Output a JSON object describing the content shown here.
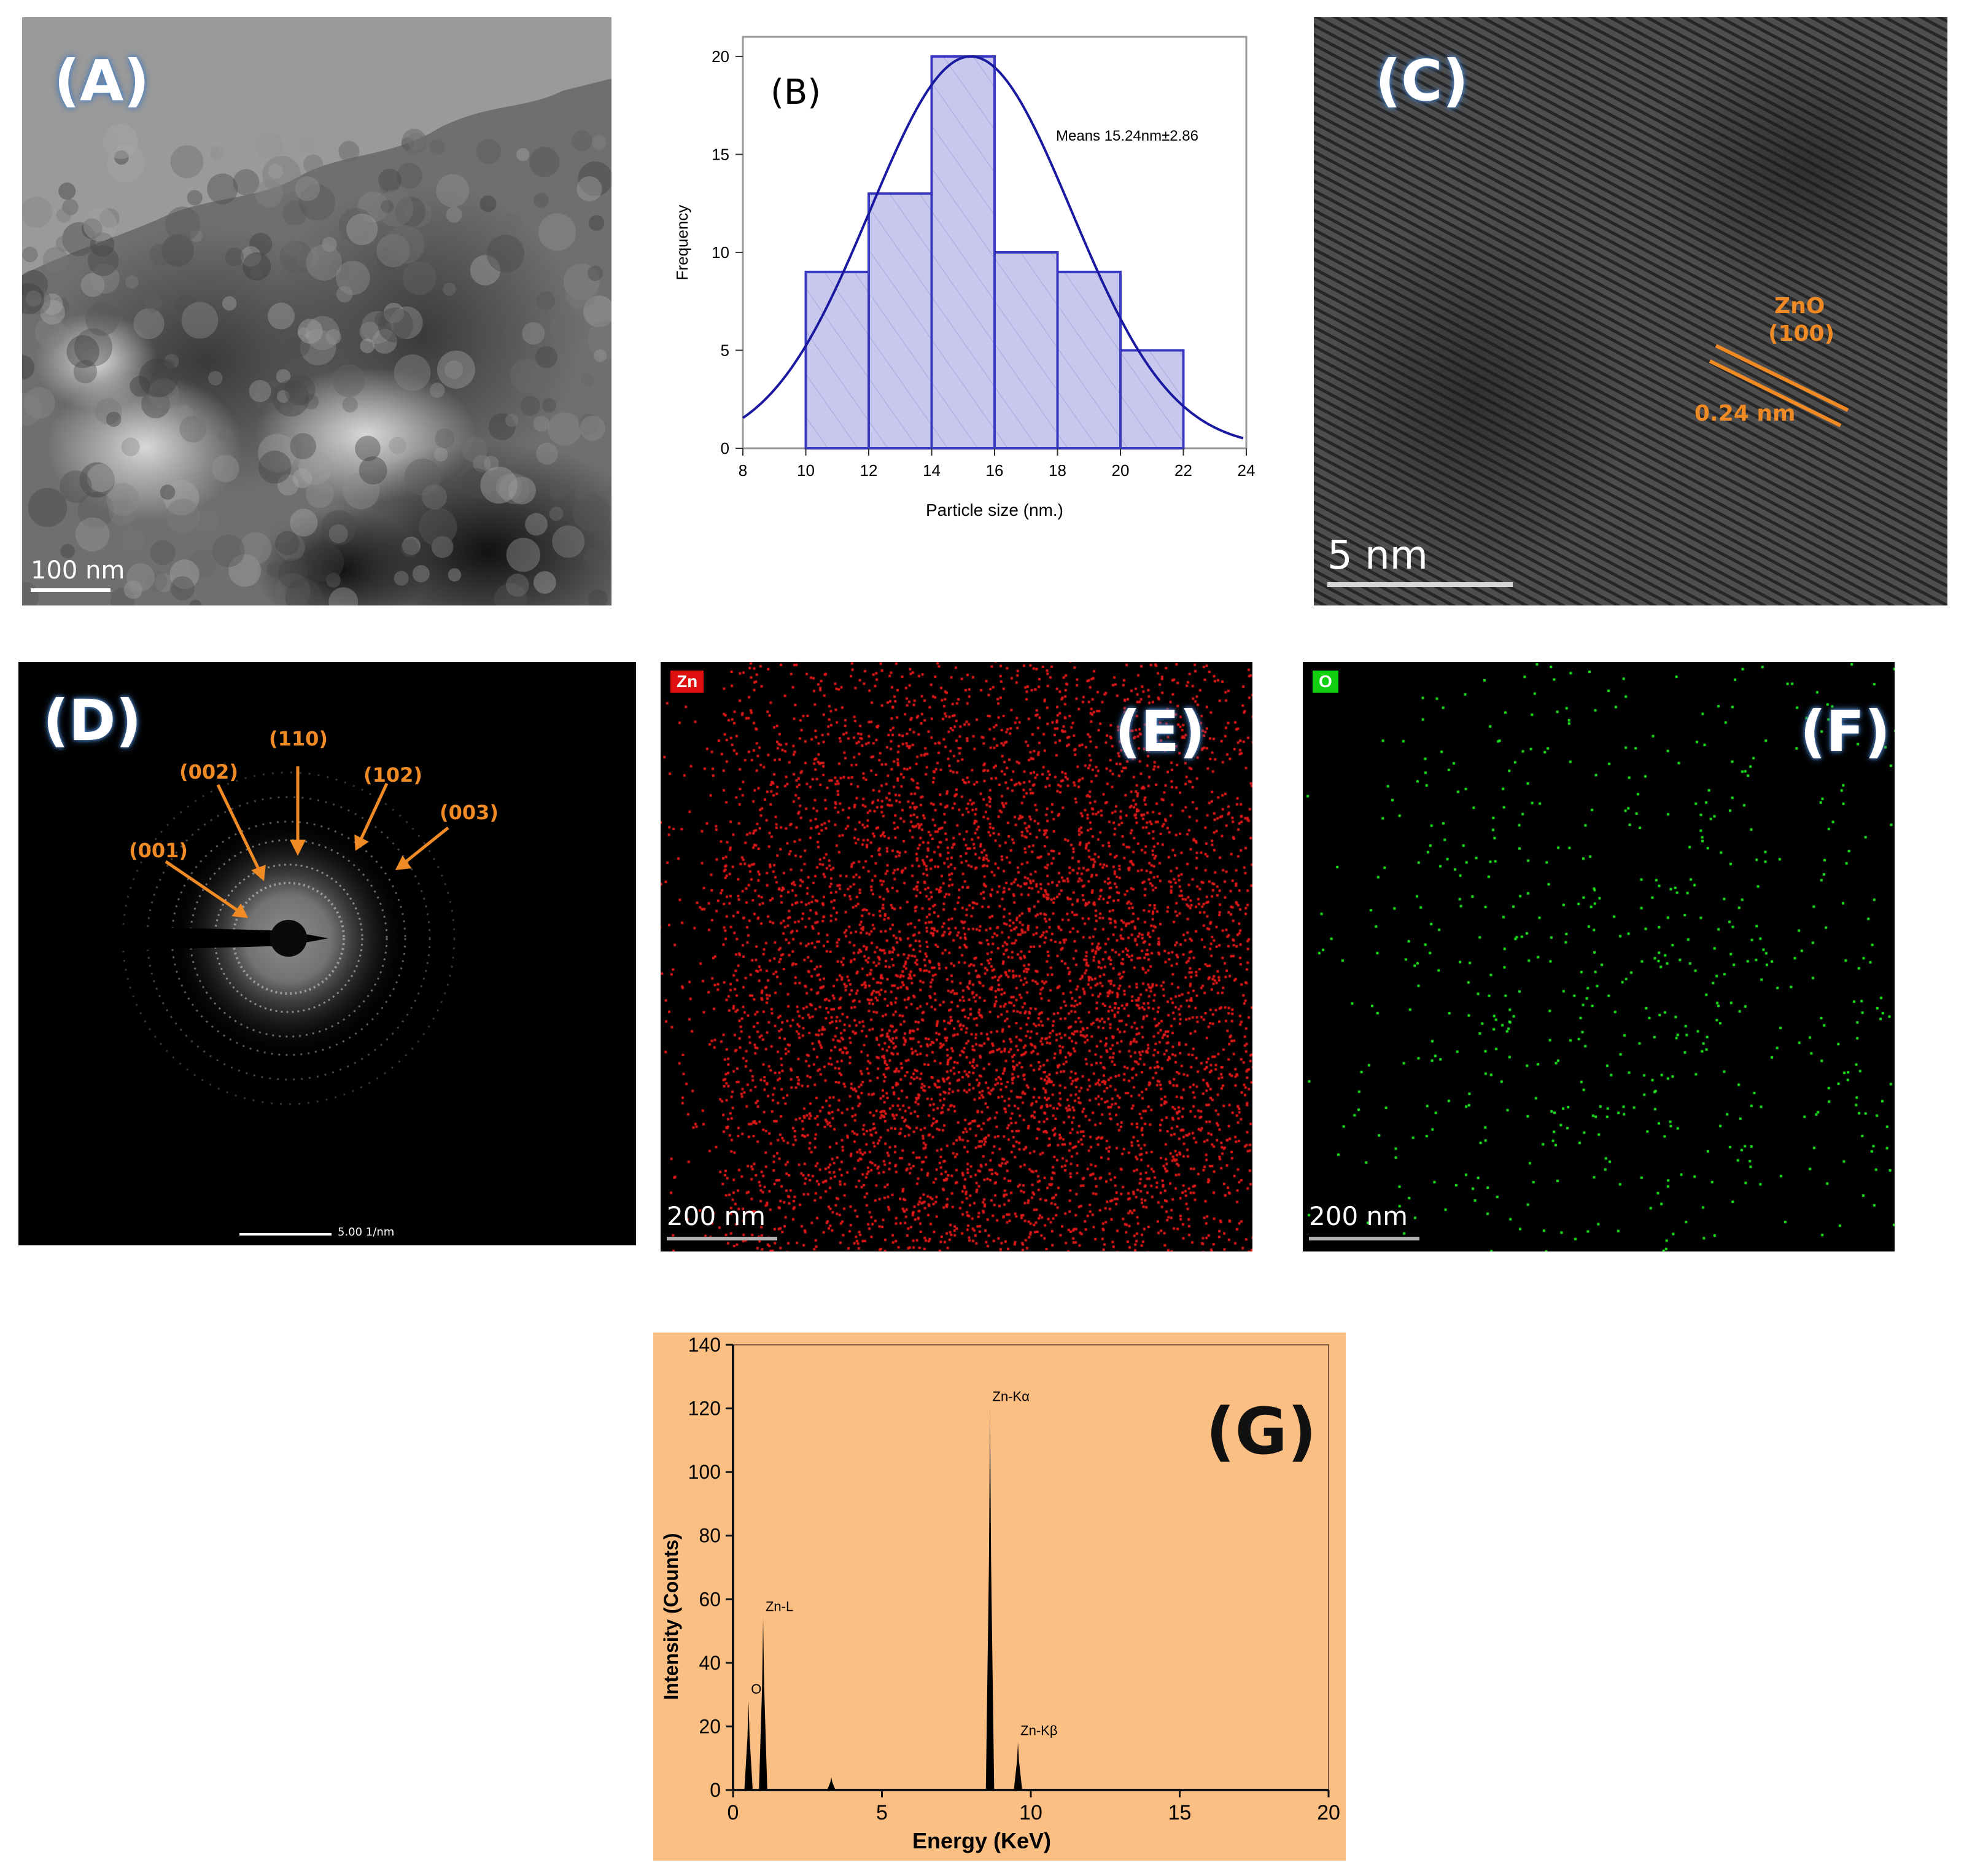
{
  "panels": {
    "A": {
      "label": "(A)",
      "scale_bar": "100 nm"
    },
    "B": {
      "label": "(B)",
      "annotation": "Means 15.24nm±2.86"
    },
    "C": {
      "label": "(C)",
      "scale_bar": "5 nm",
      "lattice_label_1": "ZnO",
      "lattice_label_2": "(100)",
      "d_spacing": "0.24 nm"
    },
    "D": {
      "label": "(D)",
      "scale_bar": "5.00 1/nm",
      "rings": [
        "(001)",
        "(002)",
        "(110)",
        "(102)",
        "(003)"
      ]
    },
    "E": {
      "label": "(E)",
      "element": "Zn",
      "scale_bar": "200 nm",
      "dot_color": "#e01818"
    },
    "F": {
      "label": "(F)",
      "element": "O",
      "scale_bar": "200 nm",
      "dot_color": "#1ee61e"
    },
    "G": {
      "label": "(G)",
      "background": "#fbbf84"
    }
  },
  "chart_data": [
    {
      "type": "bar",
      "panel": "B",
      "bin_edges": [
        10,
        12,
        14,
        16,
        18,
        20,
        22
      ],
      "values": [
        9,
        13,
        20,
        10,
        9,
        5
      ],
      "fit": "gaussian",
      "fit_mean": 15.24,
      "xlabel": "Particle size (nm.)",
      "ylabel": "Frequency",
      "xlim": [
        8,
        24
      ],
      "ylim": [
        0,
        21
      ],
      "xticks": [
        8,
        10,
        12,
        14,
        16,
        18,
        20,
        22,
        24
      ],
      "yticks": [
        0,
        5,
        10,
        15,
        20
      ],
      "bar_color": "#c8c8ee",
      "line_color": "#1a1aa0"
    },
    {
      "type": "line",
      "panel": "G",
      "xlabel": "Energy (KeV)",
      "ylabel": "Intensity (Counts)",
      "xlim": [
        0,
        20
      ],
      "ylim": [
        0,
        140
      ],
      "xticks": [
        0,
        5,
        10,
        15,
        20
      ],
      "yticks": [
        0,
        20,
        40,
        60,
        80,
        100,
        120,
        140
      ],
      "peaks": [
        {
          "x": 0.52,
          "y": 28,
          "label": "O"
        },
        {
          "x": 1.01,
          "y": 54,
          "label": "Zn-L"
        },
        {
          "x": 3.3,
          "y": 4,
          "label": ""
        },
        {
          "x": 8.63,
          "y": 120,
          "label": "Zn-Kα"
        },
        {
          "x": 9.57,
          "y": 15,
          "label": "Zn-Kβ"
        }
      ]
    }
  ]
}
